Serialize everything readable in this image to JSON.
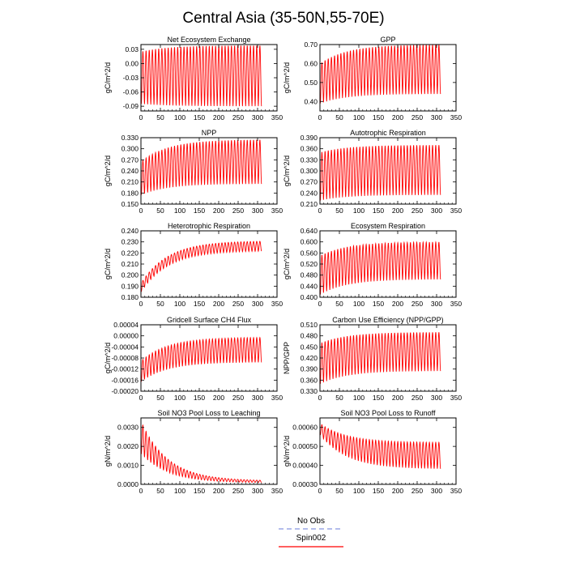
{
  "page": {
    "title": "Central Asia (35-50N,55-70E)"
  },
  "legend": {
    "items": [
      {
        "name": "No Obs",
        "color": "#9aa7e6",
        "style": "dashed"
      },
      {
        "name": "Spin002",
        "color": "#ff2a2a",
        "style": "solid"
      }
    ]
  },
  "chart_data": [
    {
      "type": "line",
      "title": "Net Ecosystem Exchange",
      "ylabel": "gC/m^2/d",
      "xlim": [
        0,
        350
      ],
      "ylim": [
        -0.1,
        0.04
      ],
      "xticks": [
        0,
        50,
        100,
        150,
        200,
        250,
        300,
        350
      ],
      "xtick_labels": [
        "0",
        "50",
        "100",
        "150",
        "200",
        "250",
        "300",
        "350"
      ],
      "yticks": [
        -0.09,
        -0.06,
        -0.03,
        0.0,
        0.03
      ],
      "ytick_labels": [
        "-0.09",
        "-0.06",
        "-0.03",
        "0.00",
        "0.03"
      ],
      "series": [
        {
          "color": "#ff0000",
          "x_range": [
            1,
            310
          ],
          "cycles": 38,
          "start_min": -0.085,
          "start_max": 0.025,
          "end_min": -0.09,
          "end_max": 0.038
        }
      ]
    },
    {
      "type": "line",
      "title": "GPP",
      "ylabel": "gC/m^2/d",
      "xlim": [
        0,
        350
      ],
      "ylim": [
        0.35,
        0.7
      ],
      "xticks": [
        0,
        50,
        100,
        150,
        200,
        250,
        300,
        350
      ],
      "xtick_labels": [
        "0",
        "50",
        "100",
        "150",
        "200",
        "250",
        "300",
        "350"
      ],
      "yticks": [
        0.4,
        0.5,
        0.6,
        0.7
      ],
      "ytick_labels": [
        "0.40",
        "0.50",
        "0.60",
        "0.70"
      ],
      "series": [
        {
          "color": "#ff0000",
          "x_range": [
            1,
            310
          ],
          "cycles": 38,
          "start_min": 0.39,
          "start_max": 0.6,
          "end_min": 0.44,
          "end_max": 0.7
        }
      ]
    },
    {
      "type": "line",
      "title": "NPP",
      "ylabel": "gC/m^2/d",
      "xlim": [
        0,
        350
      ],
      "ylim": [
        0.15,
        0.33
      ],
      "xticks": [
        0,
        50,
        100,
        150,
        200,
        250,
        300,
        350
      ],
      "xtick_labels": [
        "0",
        "50",
        "100",
        "150",
        "200",
        "250",
        "300",
        "350"
      ],
      "yticks": [
        0.15,
        0.18,
        0.21,
        0.24,
        0.27,
        0.3,
        0.33
      ],
      "ytick_labels": [
        "0.150",
        "0.180",
        "0.210",
        "0.240",
        "0.270",
        "0.300",
        "0.330"
      ],
      "series": [
        {
          "color": "#ff0000",
          "x_range": [
            1,
            310
          ],
          "cycles": 38,
          "start_min": 0.175,
          "start_max": 0.265,
          "end_min": 0.205,
          "end_max": 0.325
        }
      ]
    },
    {
      "type": "line",
      "title": "Autotrophic Respiration",
      "ylabel": "gC/m^2/d",
      "xlim": [
        0,
        350
      ],
      "ylim": [
        0.21,
        0.39
      ],
      "xticks": [
        0,
        50,
        100,
        150,
        200,
        250,
        300,
        350
      ],
      "xtick_labels": [
        "0",
        "50",
        "100",
        "150",
        "200",
        "250",
        "300",
        "350"
      ],
      "yticks": [
        0.21,
        0.24,
        0.27,
        0.3,
        0.33,
        0.36,
        0.39
      ],
      "ytick_labels": [
        "0.210",
        "0.240",
        "0.270",
        "0.300",
        "0.330",
        "0.360",
        "0.390"
      ],
      "series": [
        {
          "color": "#ff0000",
          "x_range": [
            1,
            310
          ],
          "cycles": 38,
          "start_min": 0.22,
          "start_max": 0.35,
          "end_min": 0.235,
          "end_max": 0.37
        }
      ]
    },
    {
      "type": "line",
      "title": "Heterotrophic Respiration",
      "ylabel": "gC/m^2/d",
      "xlim": [
        0,
        350
      ],
      "ylim": [
        0.18,
        0.24
      ],
      "xticks": [
        0,
        50,
        100,
        150,
        200,
        250,
        300,
        350
      ],
      "xtick_labels": [
        "0",
        "50",
        "100",
        "150",
        "200",
        "250",
        "300",
        "350"
      ],
      "yticks": [
        0.18,
        0.19,
        0.2,
        0.21,
        0.22,
        0.23,
        0.24
      ],
      "ytick_labels": [
        "0.180",
        "0.190",
        "0.200",
        "0.210",
        "0.220",
        "0.230",
        "0.240"
      ],
      "series": [
        {
          "color": "#ff0000",
          "x_range": [
            1,
            310
          ],
          "cycles": 38,
          "start_min": 0.185,
          "start_max": 0.193,
          "end_min": 0.222,
          "end_max": 0.231
        }
      ]
    },
    {
      "type": "line",
      "title": "Ecosystem Respiration",
      "ylabel": "gC/m^2/d",
      "xlim": [
        0,
        350
      ],
      "ylim": [
        0.4,
        0.64
      ],
      "xticks": [
        0,
        50,
        100,
        150,
        200,
        250,
        300,
        350
      ],
      "xtick_labels": [
        "0",
        "50",
        "100",
        "150",
        "200",
        "250",
        "300",
        "350"
      ],
      "yticks": [
        0.4,
        0.44,
        0.48,
        0.52,
        0.56,
        0.6,
        0.64
      ],
      "ytick_labels": [
        "0.400",
        "0.440",
        "0.480",
        "0.520",
        "0.560",
        "0.600",
        "0.640"
      ],
      "series": [
        {
          "color": "#ff0000",
          "x_range": [
            1,
            310
          ],
          "cycles": 38,
          "start_min": 0.41,
          "start_max": 0.55,
          "end_min": 0.465,
          "end_max": 0.6
        }
      ]
    },
    {
      "type": "line",
      "title": "Gridcell Surface CH4 Flux",
      "ylabel": "gC/m^2/d",
      "xlim": [
        0,
        350
      ],
      "ylim": [
        -0.0002,
        4e-05
      ],
      "xticks": [
        0,
        50,
        100,
        150,
        200,
        250,
        300,
        350
      ],
      "xtick_labels": [
        "0",
        "50",
        "100",
        "150",
        "200",
        "250",
        "300",
        "350"
      ],
      "yticks": [
        -0.0002,
        -0.00016,
        -0.00012,
        -8e-05,
        -4e-05,
        0.0,
        4e-05
      ],
      "ytick_labels": [
        "-0.00020",
        "-0.00016",
        "-0.00012",
        "-0.00008",
        "-0.00004",
        "0.00000",
        "0.00004"
      ],
      "series": [
        {
          "color": "#ff0000",
          "x_range": [
            1,
            310
          ],
          "cycles": 38,
          "start_min": -0.000165,
          "start_max": -9e-05,
          "end_min": -9.5e-05,
          "end_max": -5e-06
        }
      ]
    },
    {
      "type": "line",
      "title": "Carbon Use Efficiency (NPP/GPP)",
      "ylabel": "NPP/GPP",
      "xlim": [
        0,
        350
      ],
      "ylim": [
        0.33,
        0.51
      ],
      "xticks": [
        0,
        50,
        100,
        150,
        200,
        250,
        300,
        350
      ],
      "xtick_labels": [
        "0",
        "50",
        "100",
        "150",
        "200",
        "250",
        "300",
        "350"
      ],
      "yticks": [
        0.33,
        0.36,
        0.39,
        0.42,
        0.45,
        0.48,
        0.51
      ],
      "ytick_labels": [
        "0.330",
        "0.360",
        "0.390",
        "0.420",
        "0.450",
        "0.480",
        "0.510"
      ],
      "series": [
        {
          "color": "#ff0000",
          "x_range": [
            1,
            310
          ],
          "cycles": 38,
          "start_min": 0.35,
          "start_max": 0.46,
          "end_min": 0.385,
          "end_max": 0.49
        }
      ]
    },
    {
      "type": "line",
      "title": "Soil NO3 Pool Loss to Leaching",
      "ylabel": "gN/m^2/d",
      "xlim": [
        0,
        350
      ],
      "ylim": [
        0.0,
        0.0035
      ],
      "xticks": [
        0,
        50,
        100,
        150,
        200,
        250,
        300,
        350
      ],
      "xtick_labels": [
        "0",
        "50",
        "100",
        "150",
        "200",
        "250",
        "300",
        "350"
      ],
      "yticks": [
        0.0,
        0.001,
        0.002,
        0.003
      ],
      "ytick_labels": [
        "0.0000",
        "0.0010",
        "0.0020",
        "0.0030"
      ],
      "series": [
        {
          "color": "#ff0000",
          "x_range": [
            1,
            310
          ],
          "cycles": 38,
          "start_min": 0.0016,
          "start_max": 0.0033,
          "end_min": 8e-05,
          "end_max": 0.00018
        }
      ]
    },
    {
      "type": "line",
      "title": "Soil NO3 Pool Loss to Runoff",
      "ylabel": "gN/m^2/d",
      "xlim": [
        0,
        350
      ],
      "ylim": [
        0.0003,
        0.00065
      ],
      "xticks": [
        0,
        50,
        100,
        150,
        200,
        250,
        300,
        350
      ],
      "xtick_labels": [
        "0",
        "50",
        "100",
        "150",
        "200",
        "250",
        "300",
        "350"
      ],
      "yticks": [
        0.0003,
        0.0004,
        0.0005,
        0.0006
      ],
      "ytick_labels": [
        "0.00030",
        "0.00040",
        "0.00050",
        "0.00060"
      ],
      "series": [
        {
          "color": "#ff0000",
          "x_range": [
            1,
            310
          ],
          "cycles": 38,
          "start_min": 0.00056,
          "start_max": 0.00062,
          "end_min": 0.00038,
          "end_max": 0.00052
        }
      ]
    }
  ]
}
